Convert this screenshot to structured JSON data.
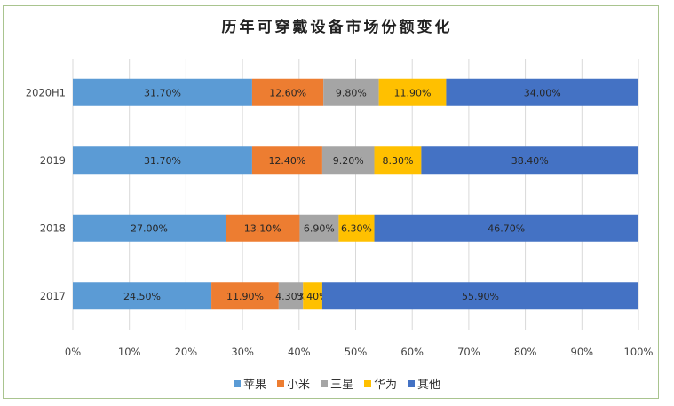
{
  "chart_data": {
    "type": "bar",
    "orientation": "horizontal-stacked-100",
    "title": "历年可穿戴设备市场份额变化",
    "categories": [
      "2020H1",
      "2019",
      "2018",
      "2017"
    ],
    "series": [
      {
        "name": "苹果",
        "color": "#5b9bd5",
        "values": [
          31.7,
          31.7,
          27.0,
          24.5
        ],
        "labels": [
          "31.70%",
          "31.70%",
          "27.00%",
          "24.50%"
        ]
      },
      {
        "name": "小米",
        "color": "#ed7d31",
        "values": [
          12.6,
          12.4,
          13.1,
          11.9
        ],
        "labels": [
          "12.60%",
          "12.40%",
          "13.10%",
          "11.90%"
        ]
      },
      {
        "name": "三星",
        "color": "#a5a5a5",
        "values": [
          9.8,
          9.2,
          6.9,
          4.3
        ],
        "labels": [
          "9.80%",
          "9.20%",
          "6.90%",
          "4.30%"
        ]
      },
      {
        "name": "华为",
        "color": "#ffc000",
        "values": [
          11.9,
          8.3,
          6.3,
          3.4
        ],
        "labels": [
          "11.90%",
          "8.30%",
          "6.30%",
          "3.40%"
        ]
      },
      {
        "name": "其他",
        "color": "#4472c4",
        "values": [
          34.0,
          38.4,
          46.7,
          55.9
        ],
        "labels": [
          "34.00%",
          "38.40%",
          "46.70%",
          "55.90%"
        ]
      }
    ],
    "xlim": [
      0,
      100
    ],
    "x_ticks": [
      "0%",
      "10%",
      "20%",
      "30%",
      "40%",
      "50%",
      "60%",
      "70%",
      "80%",
      "90%",
      "100%"
    ],
    "grid": true,
    "legend_position": "bottom"
  }
}
